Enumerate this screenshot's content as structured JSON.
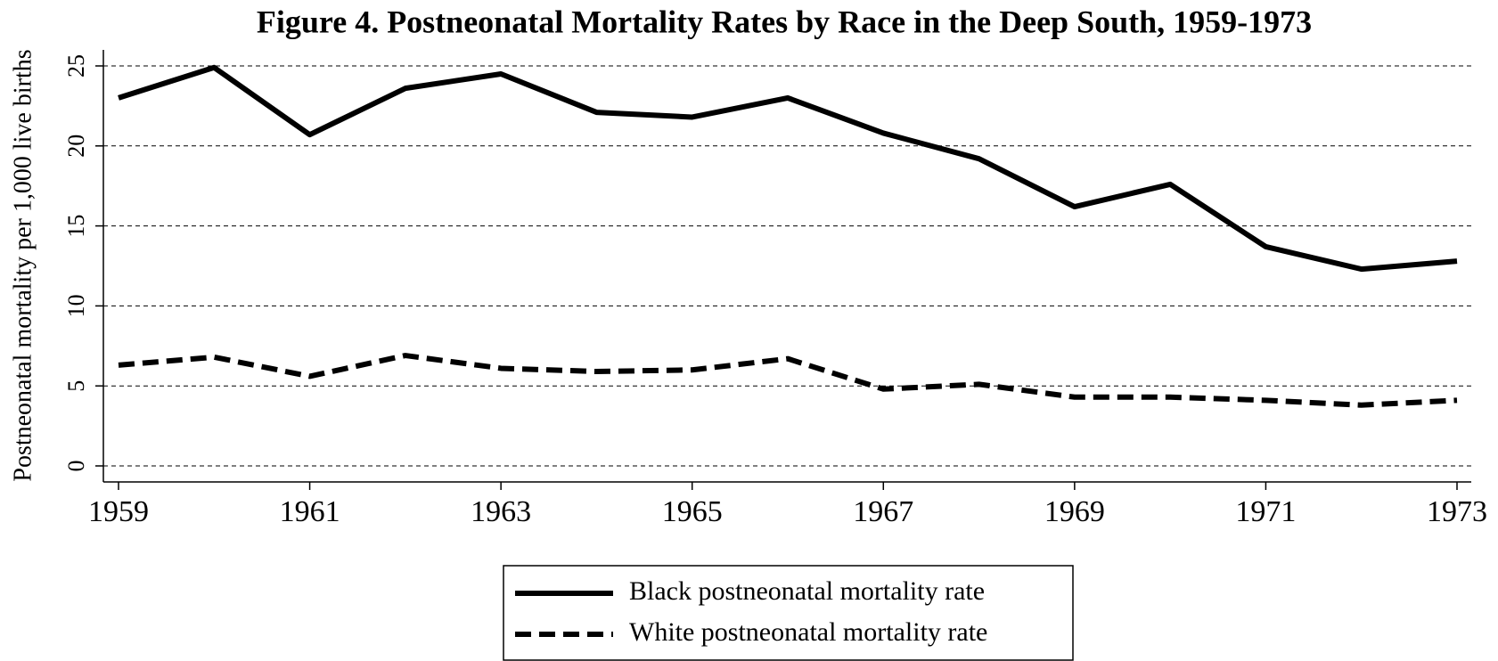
{
  "chart_data": {
    "type": "line",
    "title": "Figure 4. Postneonatal Mortality Rates by Race in the Deep South, 1959-1973",
    "ylabel": "Postneonatal mortality per 1,000 live births",
    "x": [
      1959,
      1960,
      1961,
      1962,
      1963,
      1964,
      1965,
      1966,
      1967,
      1968,
      1969,
      1970,
      1971,
      1972,
      1973
    ],
    "series": [
      {
        "name": "Black postneonatal mortality rate",
        "color": "#000000",
        "dash": "solid",
        "values": [
          23.0,
          24.9,
          20.7,
          23.6,
          24.5,
          22.1,
          21.8,
          23.0,
          20.8,
          19.2,
          16.2,
          17.6,
          13.7,
          12.3,
          12.8
        ]
      },
      {
        "name": "White postneonatal mortality rate",
        "color": "#000000",
        "dash": "dashed",
        "values": [
          6.3,
          6.8,
          5.6,
          6.9,
          6.1,
          5.9,
          6.0,
          6.7,
          4.8,
          5.1,
          4.3,
          4.3,
          4.1,
          3.8,
          4.1
        ]
      }
    ],
    "xlim": [
      1959,
      1973
    ],
    "xticks": [
      1959,
      1961,
      1963,
      1965,
      1967,
      1969,
      1971,
      1973
    ],
    "ylim": [
      0,
      25
    ],
    "yticks": [
      0,
      5,
      10,
      15,
      20,
      25
    ],
    "grid": true,
    "legend": "bottom"
  }
}
